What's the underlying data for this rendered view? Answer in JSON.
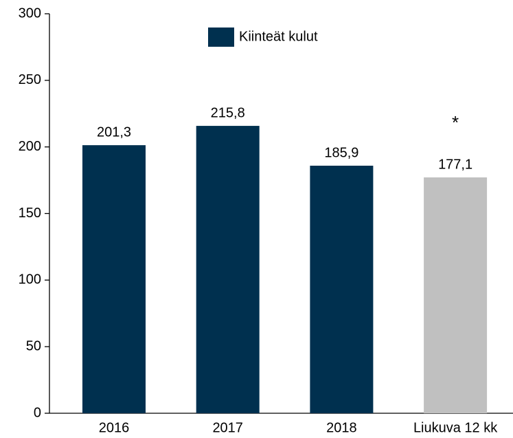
{
  "chart_data": {
    "type": "bar",
    "categories": [
      "2016",
      "2017",
      "2018",
      "Liukuva 12 kk"
    ],
    "series": [
      {
        "name": "Kiinteät kulut",
        "color": "#00304f",
        "values": [
          201.3,
          215.8,
          185.9,
          177.1
        ],
        "value_labels": [
          "201,3",
          "215,8",
          "185,9",
          "177,1"
        ],
        "colors": [
          "#00304f",
          "#00304f",
          "#00304f",
          "#c0c0c0"
        ]
      }
    ],
    "annotations": [
      {
        "text": "*",
        "category": 3
      }
    ],
    "ylim": [
      0,
      300
    ],
    "yticks": [
      0,
      50,
      100,
      150,
      200,
      250,
      300
    ],
    "grid": false,
    "legend": "top"
  }
}
